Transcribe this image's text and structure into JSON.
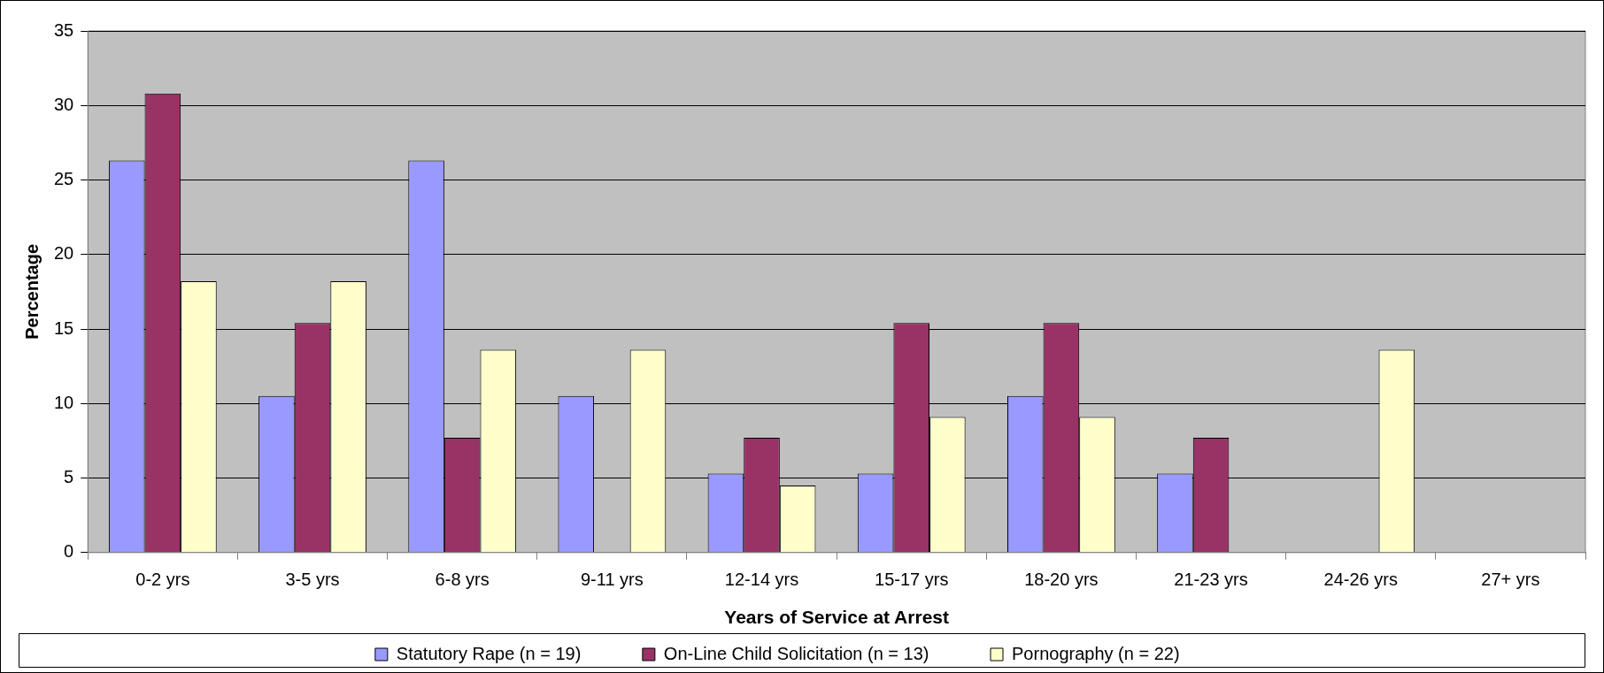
{
  "chart_data": {
    "type": "bar",
    "xlabel": "Years of Service at Arrest",
    "ylabel": "Percentage",
    "categories": [
      "0-2 yrs",
      "3-5 yrs",
      "6-8 yrs",
      "9-11 yrs",
      "12-14 yrs",
      "15-17 yrs",
      "18-20 yrs",
      "21-23 yrs",
      "24-26 yrs",
      "27+ yrs"
    ],
    "series": [
      {
        "name": "Statutory Rape (n = 19)",
        "color": "#9999ff",
        "values": [
          26.3,
          10.5,
          26.3,
          10.5,
          5.3,
          5.3,
          10.5,
          5.3,
          0,
          0
        ]
      },
      {
        "name": "On-Line Child Solicitation (n = 13)",
        "color": "#993366",
        "values": [
          30.8,
          15.4,
          7.7,
          0,
          7.7,
          15.4,
          15.4,
          7.7,
          0,
          0
        ]
      },
      {
        "name": "Pornography (n = 22)",
        "color": "#ffffcc",
        "values": [
          18.2,
          18.2,
          13.6,
          13.6,
          4.5,
          9.1,
          9.1,
          0,
          13.6,
          0
        ]
      }
    ],
    "ylim": [
      0,
      35
    ],
    "yticks": [
      0,
      5,
      10,
      15,
      20,
      25,
      30,
      35
    ],
    "grid": "y",
    "legend": "bottom"
  }
}
